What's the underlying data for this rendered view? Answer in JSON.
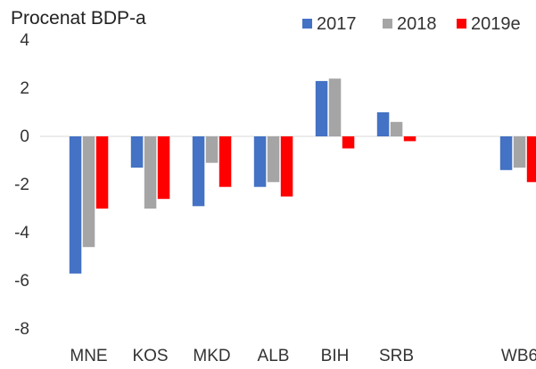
{
  "chart_data": {
    "type": "bar",
    "title": "Procenat BDP-a",
    "categories": [
      "MNE",
      "KOS",
      "MKD",
      "ALB",
      "BIH",
      "SRB",
      "",
      "WB6"
    ],
    "series": [
      {
        "name": "2017",
        "color": "#4472c4",
        "values": [
          -5.7,
          -1.3,
          -2.9,
          -2.1,
          2.3,
          1.0,
          null,
          -1.4
        ]
      },
      {
        "name": "2018",
        "color": "#a5a5a5",
        "values": [
          -4.6,
          -3.0,
          -1.1,
          -1.9,
          2.4,
          0.6,
          null,
          -1.3
        ]
      },
      {
        "name": "2019e",
        "color": "#ff0000",
        "values": [
          -3.0,
          -2.6,
          -2.1,
          -2.5,
          -0.5,
          -0.2,
          null,
          -1.9
        ]
      }
    ],
    "ylim": [
      -8,
      4
    ],
    "yticks": [
      4,
      2,
      0,
      -2,
      -4,
      -6,
      -8
    ],
    "grid": false,
    "legend": "top-right"
  }
}
